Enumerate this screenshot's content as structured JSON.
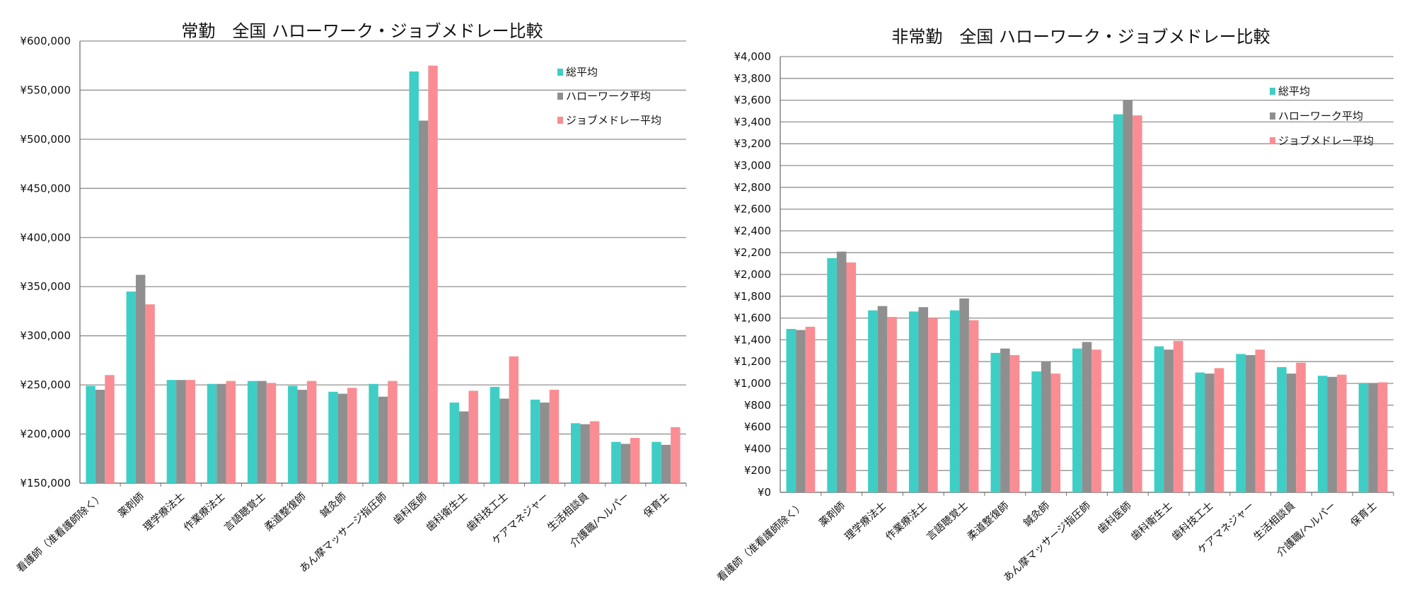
{
  "colors": {
    "series": [
      "#3ecec6",
      "#8f8f8f",
      "#f98d93"
    ],
    "grid": "#909090",
    "axis": "#707070"
  },
  "chart_data": [
    {
      "type": "bar",
      "title": "常勤　全国 ハローワーク・ジョブメドレー比較",
      "categories": [
        "看護師（准看護師除く）",
        "薬剤師",
        "理学療法士",
        "作業療法士",
        "言語聴覚士",
        "柔道整復師",
        "鍼灸師",
        "あん摩マッサージ指圧師",
        "歯科医師",
        "歯科衛生士",
        "歯科技工士",
        "ケアマネジャー",
        "生活相談員",
        "介護職/ヘルパー",
        "保育士"
      ],
      "series": [
        {
          "name": "総平均",
          "values": [
            249000,
            345000,
            255000,
            251000,
            254000,
            249000,
            243000,
            251000,
            569000,
            232000,
            248000,
            235000,
            211000,
            192000,
            192000
          ]
        },
        {
          "name": "ハローワーク平均",
          "values": [
            245000,
            362000,
            255000,
            251000,
            254000,
            245000,
            241000,
            238000,
            519000,
            223000,
            236000,
            232000,
            210000,
            190000,
            189000
          ]
        },
        {
          "name": "ジョブメドレー平均",
          "values": [
            260000,
            332000,
            255000,
            254000,
            252000,
            254000,
            247000,
            254000,
            575000,
            244000,
            279000,
            245000,
            213000,
            196000,
            207000
          ]
        }
      ],
      "ylim": [
        150000,
        600000
      ],
      "yticks": [
        150000,
        200000,
        250000,
        300000,
        350000,
        400000,
        450000,
        500000,
        550000,
        600000
      ],
      "ytick_labels": [
        "¥150,000",
        "¥200,000",
        "¥250,000",
        "¥300,000",
        "¥350,000",
        "¥400,000",
        "¥450,000",
        "¥500,000",
        "¥550,000",
        "¥600,000"
      ],
      "grid": true,
      "legend": "top-right"
    },
    {
      "type": "bar",
      "title": "非常勤　全国 ハローワーク・ジョブメドレー比較",
      "categories": [
        "看護師（准看護師除く）",
        "薬剤師",
        "理学療法士",
        "作業療法士",
        "言語聴覚士",
        "柔道整復師",
        "鍼灸師",
        "あん摩マッサージ指圧師",
        "歯科医師",
        "歯科衛生士",
        "歯科技工士",
        "ケアマネジャー",
        "生活相談員",
        "介護職/ヘルパー",
        "保育士"
      ],
      "series": [
        {
          "name": "総平均",
          "values": [
            1500,
            2150,
            1670,
            1660,
            1670,
            1280,
            1110,
            1320,
            3470,
            1340,
            1100,
            1270,
            1150,
            1070,
            1000
          ]
        },
        {
          "name": "ハローワーク平均",
          "values": [
            1490,
            2210,
            1710,
            1700,
            1780,
            1320,
            1200,
            1380,
            3600,
            1310,
            1090,
            1260,
            1090,
            1060,
            1000
          ]
        },
        {
          "name": "ジョブメドレー平均",
          "values": [
            1520,
            2110,
            1610,
            1600,
            1580,
            1260,
            1090,
            1310,
            3460,
            1390,
            1140,
            1310,
            1190,
            1080,
            1010
          ]
        }
      ],
      "ylim": [
        0,
        4000
      ],
      "yticks": [
        0,
        200,
        400,
        600,
        800,
        1000,
        1200,
        1400,
        1600,
        1800,
        2000,
        2200,
        2400,
        2600,
        2800,
        3000,
        3200,
        3400,
        3600,
        3800,
        4000
      ],
      "ytick_labels": [
        "¥0",
        "¥200",
        "¥400",
        "¥600",
        "¥800",
        "¥1,000",
        "¥1,200",
        "¥1,400",
        "¥1,600",
        "¥1,800",
        "¥2,000",
        "¥2,200",
        "¥2,400",
        "¥2,600",
        "¥2,800",
        "¥3,000",
        "¥3,200",
        "¥3,400",
        "¥3,600",
        "¥3,800",
        "¥4,000"
      ],
      "grid": true,
      "legend": "top-right"
    }
  ]
}
